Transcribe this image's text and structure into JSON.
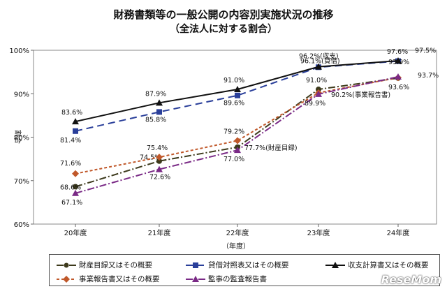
{
  "chart_data": {
    "type": "line",
    "title": "財務書類等の一般公開の内容別実施状況の推移",
    "subtitle": "（全法人に対する割合）",
    "xlabel": "（年度）",
    "ylabel": "割合",
    "categories": [
      "20年度",
      "21年度",
      "22年度",
      "23年度",
      "24年度"
    ],
    "ylim": [
      60,
      100
    ],
    "yticks": [
      "60%",
      "70%",
      "80%",
      "90%",
      "100%"
    ],
    "grid": false,
    "legend_position": "bottom",
    "series": [
      {
        "name": "財産目録又はその概要",
        "values": [
          68.6,
          74.5,
          77.7,
          91.0,
          93.6
        ],
        "labels": [
          "68.6%",
          "74.5%",
          "77.7%(財産目録)",
          "91.0%",
          "93.6%"
        ],
        "color": "#3d3a1c",
        "marker": "circle",
        "dash": "10,3,2,3"
      },
      {
        "name": "貸借対照表又はその概要",
        "values": [
          81.4,
          85.8,
          89.6,
          96.1,
          97.5
        ],
        "labels": [
          "81.4%",
          "85.8%",
          "89.6%",
          "96.1%(貸借)",
          "97.5%"
        ],
        "color": "#2a3f9a",
        "marker": "square",
        "dash": "10,6"
      },
      {
        "name": "収支計算書又はその概要",
        "values": [
          83.6,
          87.9,
          91.0,
          96.2,
          97.6
        ],
        "labels": [
          "83.6%",
          "87.9%",
          "91.0%",
          "96.2%(収支)",
          "97.6%"
        ],
        "color": "#111111",
        "marker": "triangle",
        "dash": ""
      },
      {
        "name": "事業報告書又はその概要",
        "values": [
          71.6,
          75.4,
          79.2,
          90.2,
          93.7
        ],
        "labels": [
          "71.6%",
          "75.4%",
          "79.2%",
          "90.2%(事業報告書)",
          "93.7%"
        ],
        "color": "#c0582a",
        "marker": "diamond",
        "dash": "4,3"
      },
      {
        "name": "監事の監査報告書",
        "values": [
          67.1,
          72.6,
          77.0,
          89.9,
          93.9
        ],
        "labels": [
          "67.1%",
          "72.6%",
          "77.0%",
          "89.9%",
          "93.9%"
        ],
        "color": "#7a2a86",
        "marker": "triangle",
        "dash": "10,3,2,3"
      }
    ]
  },
  "watermark": "ReseMom"
}
